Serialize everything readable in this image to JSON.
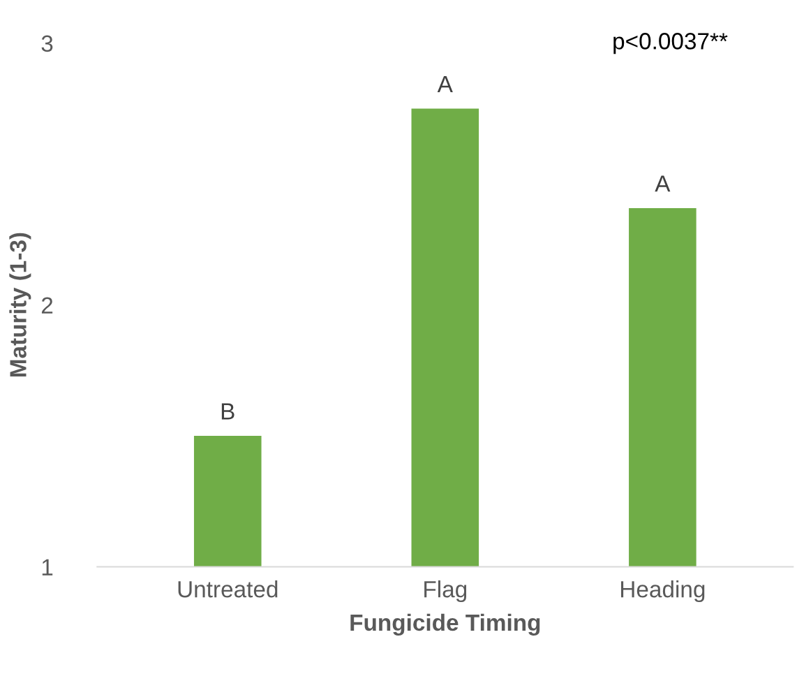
{
  "chart_data": {
    "type": "bar",
    "xlabel": "Fungicide Timing",
    "ylabel": "Maturity (1-3)",
    "categories": [
      "Untreated",
      "Flag",
      "Heading"
    ],
    "values": [
      1.5,
      2.75,
      2.37
    ],
    "color": "#70ad47",
    "ylim": [
      1,
      3
    ],
    "yticks": [
      1,
      2,
      3
    ],
    "grid": false,
    "annotations": [
      {
        "text": "B",
        "x": "Untreated",
        "y": 1.5
      },
      {
        "text": "A",
        "x": "Flag",
        "y": 2.75
      },
      {
        "text": "A",
        "x": "Heading",
        "y": 2.37
      },
      "p<0.0037**"
    ]
  }
}
